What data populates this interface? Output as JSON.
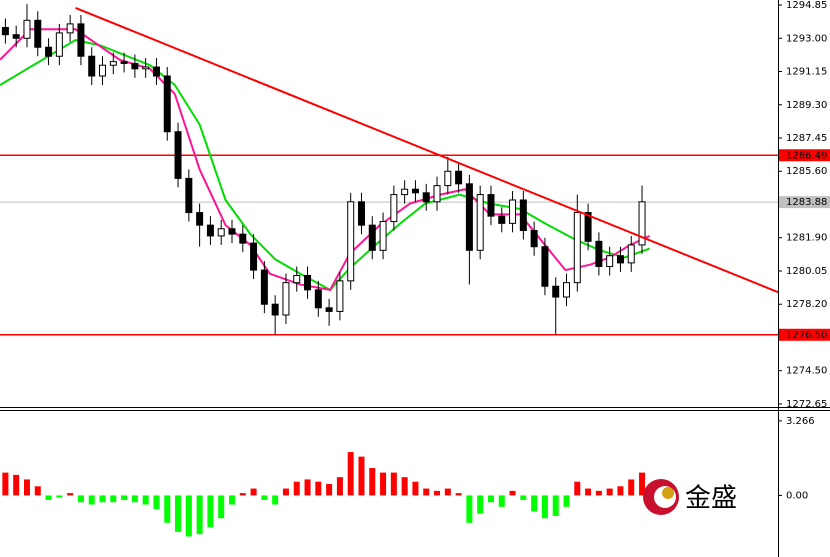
{
  "chart_data": [
    {
      "type": "candlestick",
      "xlim": [
        -0.5,
        71.6
      ],
      "ylim": [
        1272.48,
        1295.13
      ],
      "yticks": [
        1294.85,
        {
          "value": 1293,
          "label": "1293.00"
        },
        1291.15,
        {
          "value": 1289.3,
          "label": "1289.30"
        },
        1287.45,
        {
          "value": 1285.6,
          "label": "1285.60"
        },
        {
          "value": 1281.9,
          "label": "1281.90"
        },
        1280.05,
        {
          "value": 1278.2,
          "label": "1278.20"
        },
        {
          "value": 1274.5,
          "label": "1274.50"
        },
        1272.65
      ],
      "open": [
        1293.6,
        1293.2,
        1293.0,
        1294.0,
        1292.5,
        1292.0,
        1293.3,
        1293.8,
        1292.0,
        1290.9,
        1291.5,
        1291.7,
        1291.6,
        1291.3,
        1291.4,
        1290.9,
        1287.8,
        1285.2,
        1283.3,
        1282.6,
        1282.0,
        1282.4,
        1282.1,
        1281.6,
        1280.1,
        1278.2,
        1277.6,
        1279.4,
        1279.8,
        1279.0,
        1278.0,
        1277.8,
        1279.5,
        1283.9,
        1282.6,
        1281.2,
        1282.8,
        1284.3,
        1284.6,
        1284.4,
        1283.9,
        1284.8,
        1285.6,
        1284.9,
        1281.2,
        1284.3,
        1283.1,
        1282.7,
        1284.0,
        1282.3,
        1281.4,
        1279.2,
        1278.6,
        1279.4,
        1283.3,
        1281.7,
        1280.3,
        1280.9,
        1280.5,
        1281.5
      ],
      "high": [
        1294.1,
        1293.7,
        1294.9,
        1294.5,
        1293.0,
        1293.8,
        1294.3,
        1294.3,
        1292.5,
        1292.0,
        1292.2,
        1292.2,
        1292.1,
        1291.9,
        1291.9,
        1291.4,
        1288.3,
        1285.7,
        1283.8,
        1283.1,
        1282.9,
        1282.9,
        1282.6,
        1282.1,
        1280.6,
        1278.7,
        1279.9,
        1280.3,
        1280.3,
        1279.5,
        1278.5,
        1280.0,
        1284.4,
        1284.4,
        1283.1,
        1283.3,
        1284.8,
        1285.1,
        1285.1,
        1284.9,
        1285.3,
        1286.4,
        1286.1,
        1285.4,
        1284.8,
        1284.8,
        1283.6,
        1284.5,
        1284.5,
        1282.8,
        1281.9,
        1279.7,
        1279.9,
        1284.3,
        1283.8,
        1282.2,
        1281.4,
        1281.4,
        1282.0,
        1284.8
      ],
      "low": [
        1292.7,
        1292.5,
        1292.5,
        1292.0,
        1291.5,
        1291.5,
        1292.8,
        1291.5,
        1290.4,
        1290.4,
        1291.0,
        1291.1,
        1290.8,
        1290.8,
        1290.4,
        1287.3,
        1284.7,
        1282.8,
        1281.4,
        1281.5,
        1281.5,
        1281.6,
        1281.1,
        1279.6,
        1277.7,
        1276.5,
        1277.1,
        1278.9,
        1278.5,
        1277.5,
        1277.0,
        1277.3,
        1279.0,
        1282.1,
        1280.7,
        1280.7,
        1282.3,
        1283.8,
        1283.9,
        1283.4,
        1283.4,
        1284.3,
        1284.4,
        1279.3,
        1280.7,
        1282.6,
        1282.2,
        1282.2,
        1281.8,
        1280.9,
        1278.7,
        1276.5,
        1278.1,
        1278.9,
        1281.2,
        1279.8,
        1279.8,
        1280.0,
        1280.0,
        1281.0
      ],
      "close": [
        1293.2,
        1293.0,
        1294.0,
        1292.5,
        1292.0,
        1293.3,
        1293.8,
        1292.0,
        1290.9,
        1291.5,
        1291.7,
        1291.6,
        1291.3,
        1291.4,
        1290.9,
        1287.8,
        1285.2,
        1283.3,
        1282.6,
        1282.0,
        1282.4,
        1282.1,
        1281.6,
        1280.1,
        1278.2,
        1277.6,
        1279.4,
        1279.8,
        1279.0,
        1278.0,
        1277.8,
        1279.5,
        1283.9,
        1282.6,
        1281.2,
        1282.8,
        1284.3,
        1284.6,
        1284.4,
        1283.9,
        1284.8,
        1285.6,
        1284.9,
        1281.2,
        1284.3,
        1283.1,
        1282.7,
        1284.0,
        1282.3,
        1281.4,
        1279.2,
        1278.6,
        1279.4,
        1283.3,
        1281.7,
        1280.3,
        1280.9,
        1280.5,
        1281.5,
        1283.9
      ],
      "overlays": [
        {
          "color": "#00dd00",
          "x": [
            -0.5,
            6.5,
            8.8,
            13.4,
            15.7,
            18.0,
            20.4,
            22.7,
            25.0,
            27.3,
            30.1,
            31.9,
            34.3,
            36.6,
            38.9,
            42.1,
            44.9,
            47.7,
            50.0,
            52.8,
            55.1,
            57.4,
            59.7
          ],
          "values": [
            1290.4,
            1292.9,
            1292.6,
            1291.5,
            1290.4,
            1288.2,
            1284.0,
            1282.1,
            1280.7,
            1279.9,
            1279.0,
            1280.2,
            1281.5,
            1282.7,
            1283.8,
            1284.3,
            1283.8,
            1283.5,
            1282.7,
            1281.8,
            1281.2,
            1280.8,
            1281.3
          ]
        },
        {
          "color": "#ff1493",
          "x": [
            -0.5,
            2.3,
            6.5,
            10.6,
            13.4,
            15.7,
            18.0,
            20.4,
            22.7,
            24.5,
            27.3,
            30.1,
            31.9,
            34.7,
            37.5,
            40.3,
            42.6,
            44.9,
            47.7,
            50.0,
            51.9,
            54.2,
            56.0,
            57.9,
            59.7
          ],
          "values": [
            1291.8,
            1293.5,
            1293.5,
            1291.8,
            1291.3,
            1289.9,
            1285.7,
            1282.6,
            1281.5,
            1279.9,
            1279.3,
            1279.0,
            1281.0,
            1282.6,
            1283.8,
            1284.3,
            1284.6,
            1283.2,
            1283.2,
            1281.5,
            1280.1,
            1280.4,
            1280.8,
            1281.5,
            1282.0
          ]
        }
      ],
      "trendline": {
        "color": "#ff0000",
        "x": [
          6.5,
          71.6
        ],
        "y": [
          1294.69,
          1278.87
        ]
      },
      "levels": [
        {
          "value": 1286.49,
          "color": "#ff0000",
          "text_color": "#ffffff"
        },
        {
          "value": 1283.88,
          "color": "#c0c0c0",
          "text_color": "#000000"
        },
        {
          "value": 1276.5,
          "label": "1276.50",
          "color": "#ff0000",
          "text_color": "#000000"
        }
      ]
    },
    {
      "type": "histogram",
      "ylim": [
        -2.7,
        3.7
      ],
      "yticks": [
        3.266,
        {
          "value": 0,
          "label": "0.00"
        }
      ],
      "pos_color": "#ff0000",
      "neg_color": "#00ff00",
      "values": [
        1.0,
        0.9,
        0.7,
        0.4,
        -0.2,
        -0.1,
        0.1,
        -0.3,
        -0.4,
        -0.3,
        -0.3,
        -0.2,
        -0.3,
        -0.4,
        -0.6,
        -1.2,
        -1.6,
        -1.8,
        -1.7,
        -1.4,
        -1.0,
        -0.4,
        0.1,
        0.3,
        -0.2,
        -0.4,
        0.3,
        0.6,
        0.7,
        0.6,
        0.5,
        0.8,
        1.9,
        1.7,
        1.2,
        1.0,
        1.0,
        0.8,
        0.6,
        0.3,
        0.2,
        0.3,
        0.1,
        -1.2,
        -0.8,
        -0.3,
        -0.5,
        0.2,
        -0.2,
        -0.7,
        -1.0,
        -0.9,
        -0.5,
        0.6,
        0.3,
        0.2,
        0.3,
        0.4,
        0.7,
        1.0
      ],
      "watermark": "金盛"
    }
  ]
}
